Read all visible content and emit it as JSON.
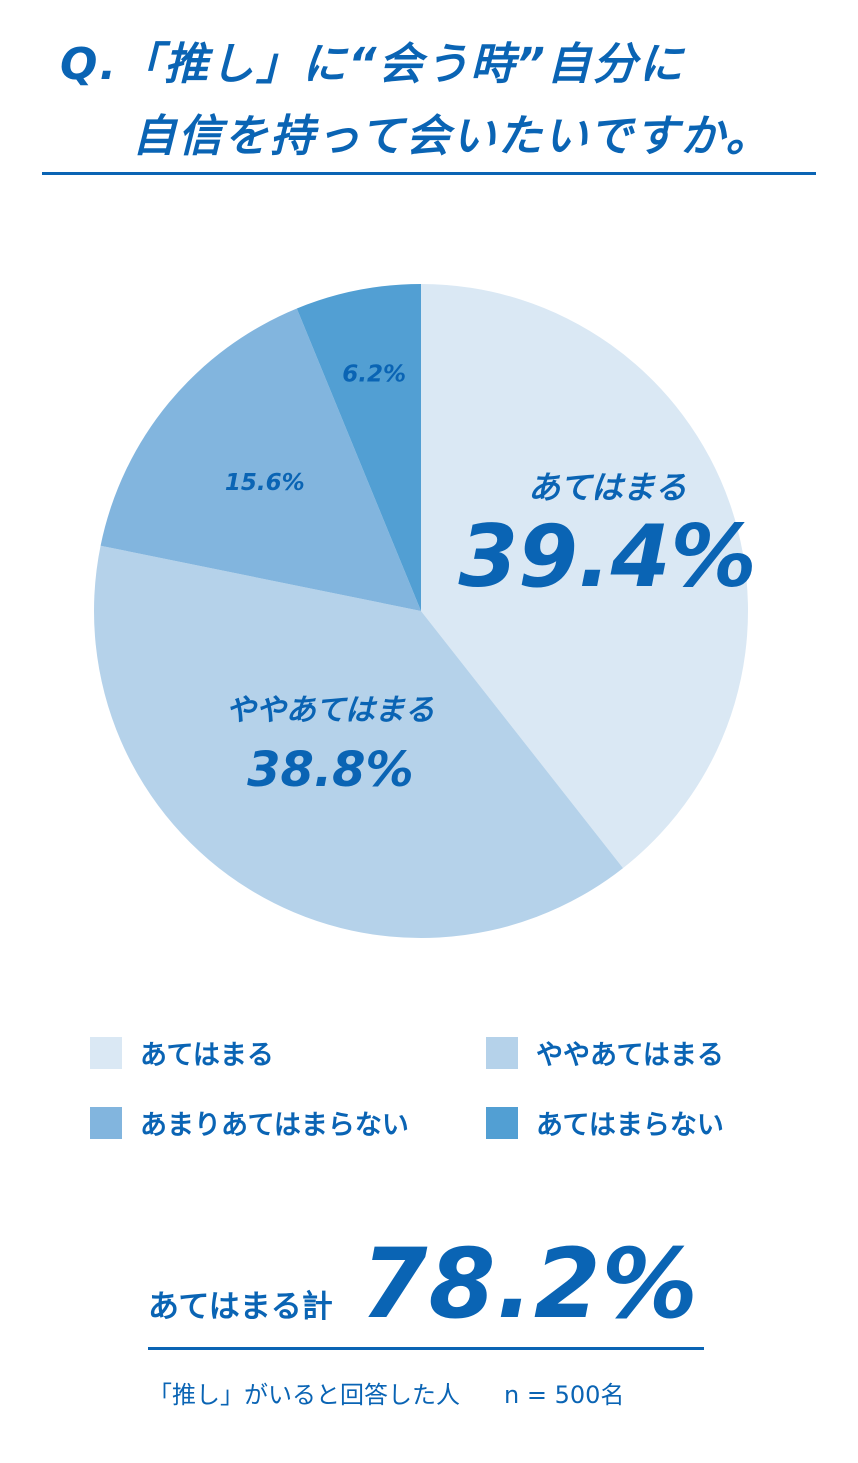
{
  "title": {
    "line1": "Q.「推し」に“会う時”自分に",
    "line2": "自信を持って会いたいですか。"
  },
  "chart_data": {
    "type": "pie",
    "start": "12 o'clock, clockwise",
    "slices": [
      {
        "label": "あてはまる",
        "value": 39.4,
        "value_label": "39.4%",
        "color": "#dae8f4",
        "inner_label": "あてはまる"
      },
      {
        "label": "ややあてはまる",
        "value": 38.8,
        "value_label": "38.8%",
        "color": "#b5d2ea",
        "inner_label": "ややあてはまる"
      },
      {
        "label": "あまりあてはまらない",
        "value": 15.6,
        "value_label": "15.6%",
        "color": "#82b5de"
      },
      {
        "label": "あてはまらない",
        "value": 6.2,
        "value_label": "6.2%",
        "color": "#529fd3"
      }
    ]
  },
  "legend": {
    "items": [
      {
        "label": "あてはまる",
        "color": "#dae8f4"
      },
      {
        "label": "ややあてはまる",
        "color": "#b5d2ea"
      },
      {
        "label": "あまりあてはまらない",
        "color": "#82b5de"
      },
      {
        "label": "あてはまらない",
        "color": "#529fd3"
      }
    ]
  },
  "total": {
    "label": "あてはまる計",
    "value": "78.2%"
  },
  "note": {
    "respondents": "「推し」がいると回答した人",
    "sample": "n = 500名"
  }
}
